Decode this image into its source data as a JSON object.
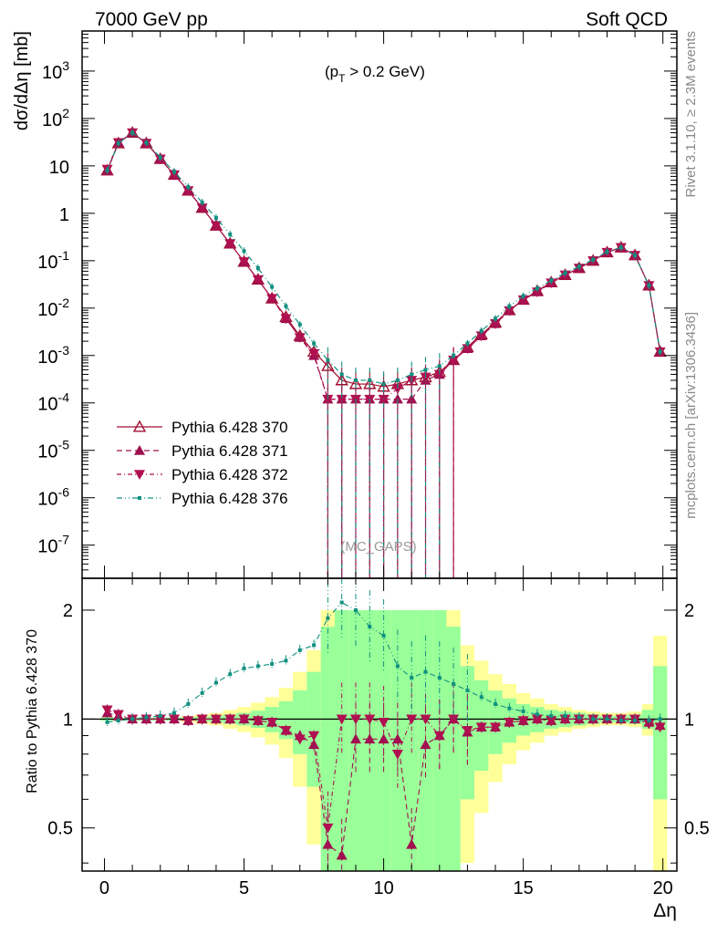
{
  "header": {
    "left": "7000 GeV pp",
    "right": "Soft QCD"
  },
  "side": {
    "rivet": "Rivet 3.1.10, ≥ 2.3M events",
    "mcplots": "mcplots.cern.ch [arXiv:1306.3436]"
  },
  "colors": {
    "c370": "#a01030",
    "c371": "#a01050",
    "c372": "#b01050",
    "c376": "#109080",
    "band_yellow": "#ffff99",
    "band_green": "#99ff99"
  },
  "chart_data": [
    {
      "type": "scatter",
      "panel": "main",
      "annotation": "(p_T > 0.2 GeV)",
      "watermark": "(MC_GAPS)",
      "xlabel": "Δη",
      "ylabel": "dσ/dΔη [mb]",
      "xlim": [
        -0.8,
        20.5
      ],
      "ylim": [
        2e-08,
        7000
      ],
      "yscale": "log",
      "ytick_labels": [
        "10^-7",
        "10^-6",
        "10^-5",
        "10^-4",
        "10^-3",
        "10^-2",
        "10^-1",
        "1",
        "10",
        "10^2",
        "10^3"
      ],
      "legend": [
        "Pythia 6.428 370",
        "Pythia 6.428 371",
        "Pythia 6.428 372",
        "Pythia 6.428 376"
      ],
      "legend_position": "lower-left",
      "series": [
        {
          "name": "Pythia 6.428 370",
          "marker": "open-triangle-up",
          "line": "solid",
          "x": [
            0.1,
            0.5,
            1.0,
            1.5,
            2.0,
            2.5,
            3.0,
            3.5,
            4.0,
            4.5,
            5.0,
            5.5,
            6.0,
            6.5,
            7.0,
            7.5,
            8.0,
            8.5,
            9.0,
            9.5,
            10.0,
            10.5,
            11.0,
            11.5,
            12.0,
            12.5,
            13.0,
            13.5,
            14.0,
            14.5,
            15.0,
            15.5,
            16.0,
            16.5,
            17.0,
            17.5,
            18.0,
            18.5,
            19.0,
            19.5,
            19.9
          ],
          "y": [
            8,
            30,
            50,
            30,
            14,
            6.5,
            3,
            1.3,
            0.55,
            0.23,
            0.095,
            0.04,
            0.016,
            0.0065,
            0.0026,
            0.0012,
            0.0006,
            0.0003,
            0.00025,
            0.00025,
            0.00022,
            0.00025,
            0.0003,
            0.00035,
            0.00045,
            0.0008,
            0.0015,
            0.0028,
            0.005,
            0.009,
            0.015,
            0.023,
            0.035,
            0.05,
            0.07,
            0.1,
            0.15,
            0.19,
            0.13,
            0.03,
            0.0012
          ]
        },
        {
          "name": "Pythia 6.428 371",
          "marker": "filled-triangle-up",
          "line": "dashed",
          "x": [
            0.1,
            0.5,
            1.0,
            1.5,
            2.0,
            2.5,
            3.0,
            3.5,
            4.0,
            4.5,
            5.0,
            5.5,
            6.0,
            6.5,
            7.0,
            7.5,
            8.0,
            8.5,
            9.0,
            9.5,
            10.0,
            10.5,
            11.0,
            11.5,
            12.0,
            12.5,
            13.0,
            13.5,
            14.0,
            14.5,
            15.0,
            15.5,
            16.0,
            16.5,
            17.0,
            17.5,
            18.0,
            18.5,
            19.0,
            19.5,
            19.9
          ],
          "y": [
            8,
            31,
            50,
            30,
            14,
            6.5,
            3,
            1.3,
            0.55,
            0.23,
            0.095,
            0.04,
            0.016,
            0.006,
            0.0024,
            0.001,
            0.00012,
            0.00012,
            0.00012,
            0.00012,
            0.00012,
            0.00012,
            0.00012,
            0.0003,
            0.0004,
            0.0008,
            0.0014,
            0.0026,
            0.0047,
            0.0088,
            0.015,
            0.022,
            0.034,
            0.05,
            0.07,
            0.1,
            0.15,
            0.19,
            0.13,
            0.03,
            0.0012
          ]
        },
        {
          "name": "Pythia 6.428 372",
          "marker": "filled-triangle-down",
          "line": "dash-dot",
          "x": [
            0.1,
            0.5,
            1.0,
            1.5,
            2.0,
            2.5,
            3.0,
            3.5,
            4.0,
            4.5,
            5.0,
            5.5,
            6.0,
            6.5,
            7.0,
            7.5,
            8.0,
            8.5,
            9.0,
            9.5,
            10.0,
            10.5,
            11.0,
            11.5,
            12.0,
            12.5,
            13.0,
            13.5,
            14.0,
            14.5,
            15.0,
            15.5,
            16.0,
            16.5,
            17.0,
            17.5,
            18.0,
            18.5,
            19.0,
            19.5,
            19.9
          ],
          "y": [
            8.5,
            31,
            50,
            30,
            14,
            6.5,
            3,
            1.3,
            0.55,
            0.23,
            0.095,
            0.04,
            0.016,
            0.006,
            0.0024,
            0.0011,
            0.00012,
            0.00012,
            0.00012,
            0.00012,
            0.00012,
            0.0002,
            0.0003,
            0.00035,
            0.0004,
            0.0008,
            0.0014,
            0.0026,
            0.0047,
            0.0088,
            0.015,
            0.022,
            0.034,
            0.05,
            0.07,
            0.1,
            0.15,
            0.19,
            0.13,
            0.03,
            0.0012
          ]
        },
        {
          "name": "Pythia 6.428 376",
          "marker": "small-square",
          "line": "dash-dot-dot",
          "x": [
            0.1,
            0.5,
            1.0,
            1.5,
            2.0,
            2.5,
            3.0,
            3.5,
            4.0,
            4.5,
            5.0,
            5.5,
            6.0,
            6.5,
            7.0,
            7.5,
            8.0,
            8.5,
            9.0,
            9.5,
            10.0,
            10.5,
            11.0,
            11.5,
            12.0,
            12.5,
            13.0,
            13.5,
            14.0,
            14.5,
            15.0,
            15.5,
            16.0,
            16.5,
            17.0,
            17.5,
            18.0,
            18.5,
            19.0,
            19.5,
            19.9
          ],
          "y": [
            8,
            30,
            50,
            31,
            15,
            7.5,
            3.6,
            1.7,
            0.8,
            0.36,
            0.16,
            0.07,
            0.028,
            0.011,
            0.0045,
            0.0018,
            0.0008,
            0.0004,
            0.0003,
            0.0003,
            0.00025,
            0.0003,
            0.0004,
            0.0005,
            0.0006,
            0.001,
            0.0018,
            0.0033,
            0.006,
            0.011,
            0.018,
            0.026,
            0.038,
            0.055,
            0.075,
            0.105,
            0.155,
            0.19,
            0.13,
            0.03,
            0.0012
          ]
        }
      ]
    },
    {
      "type": "scatter",
      "panel": "ratio",
      "ylabel": "Ratio to Pythia 6.428 370",
      "xlabel": "Δη",
      "xlim": [
        -0.8,
        20.5
      ],
      "ylim": [
        0.38,
        2.45
      ],
      "yscale": "log",
      "ytick_labels": [
        "0.5",
        "1",
        "2"
      ],
      "xtick_labels": [
        "0",
        "5",
        "10",
        "15",
        "20"
      ],
      "reference": 1,
      "band": {
        "x": [
          0.1,
          0.5,
          1.0,
          1.5,
          2.0,
          2.5,
          3.0,
          3.5,
          4.0,
          4.5,
          5.0,
          5.5,
          6.0,
          6.5,
          7.0,
          7.5,
          8.0,
          8.5,
          9.0,
          9.5,
          10.0,
          10.5,
          11.0,
          11.5,
          12.0,
          12.5,
          13.0,
          13.5,
          14.0,
          14.5,
          15.0,
          15.5,
          16.0,
          16.5,
          17.0,
          17.5,
          18.0,
          18.5,
          19.0,
          19.5,
          19.9
        ],
        "yellow": [
          0.01,
          0.01,
          0.01,
          0.01,
          0.01,
          0.01,
          0.02,
          0.03,
          0.04,
          0.06,
          0.08,
          0.11,
          0.15,
          0.22,
          0.35,
          0.55,
          1,
          1,
          1,
          1,
          1,
          1,
          1,
          1,
          1,
          1,
          0.6,
          0.45,
          0.33,
          0.25,
          0.18,
          0.14,
          0.1,
          0.08,
          0.06,
          0.05,
          0.04,
          0.04,
          0.05,
          0.1,
          0.7
        ],
        "green": [
          0.01,
          0.01,
          0.01,
          0.01,
          0.01,
          0.01,
          0.01,
          0.015,
          0.02,
          0.03,
          0.04,
          0.055,
          0.08,
          0.12,
          0.2,
          0.35,
          0.8,
          1,
          1,
          1,
          1,
          1,
          1,
          1,
          1,
          0.8,
          0.4,
          0.28,
          0.2,
          0.14,
          0.1,
          0.08,
          0.06,
          0.05,
          0.04,
          0.03,
          0.02,
          0.02,
          0.03,
          0.06,
          0.4
        ]
      },
      "series": [
        {
          "name": "Pythia 6.428 371",
          "x": [
            0.1,
            0.5,
            1.0,
            1.5,
            2.0,
            2.5,
            3.0,
            3.5,
            4.0,
            4.5,
            5.0,
            5.5,
            6.0,
            6.5,
            7.0,
            7.5,
            8.0,
            8.5,
            9.0,
            9.5,
            10.0,
            10.5,
            11.0,
            11.5,
            12.0,
            12.5,
            13.0,
            13.5,
            14.0,
            14.5,
            15.0,
            15.5,
            16.0,
            16.5,
            17.0,
            17.5,
            18.0,
            18.5,
            19.0,
            19.5,
            19.9
          ],
          "y": [
            1.04,
            1.02,
            1.0,
            1.0,
            1.0,
            1.0,
            0.99,
            1.0,
            1.0,
            1.0,
            1.0,
            0.99,
            0.98,
            0.93,
            0.9,
            0.85,
            0.45,
            0.42,
            0.88,
            0.88,
            0.88,
            0.88,
            0.45,
            0.85,
            0.9,
            1.0,
            0.92,
            0.95,
            0.95,
            0.98,
            0.99,
            1.0,
            0.99,
            1.0,
            1.0,
            1.0,
            1.0,
            1.0,
            1.0,
            0.98,
            0.96
          ]
        },
        {
          "name": "Pythia 6.428 372",
          "x": [
            0.1,
            0.5,
            1.0,
            1.5,
            2.0,
            2.5,
            3.0,
            3.5,
            4.0,
            4.5,
            5.0,
            5.5,
            6.0,
            6.5,
            7.0,
            7.5,
            8.0,
            8.5,
            9.0,
            9.5,
            10.0,
            10.5,
            11.0,
            11.5,
            12.0,
            12.5,
            13.0,
            13.5,
            14.0,
            14.5,
            15.0,
            15.5,
            16.0,
            16.5,
            17.0,
            17.5,
            18.0,
            18.5,
            19.0,
            19.5,
            19.9
          ],
          "y": [
            1.06,
            1.03,
            1.0,
            1.0,
            1.0,
            1.0,
            0.99,
            1.0,
            1.0,
            1.0,
            1.0,
            0.99,
            0.98,
            0.93,
            0.88,
            0.9,
            0.5,
            1.0,
            1.0,
            1.0,
            0.98,
            0.8,
            1.0,
            1.0,
            0.9,
            1.0,
            0.93,
            0.95,
            0.95,
            0.98,
            0.99,
            1.0,
            0.99,
            1.0,
            1.0,
            1.0,
            1.0,
            1.0,
            1.0,
            0.97,
            0.95
          ]
        },
        {
          "name": "Pythia 6.428 376",
          "x": [
            0.1,
            0.5,
            1.0,
            1.5,
            2.0,
            2.5,
            3.0,
            3.5,
            4.0,
            4.5,
            5.0,
            5.5,
            6.0,
            6.5,
            7.0,
            7.5,
            8.0,
            8.5,
            9.0,
            9.5,
            10.0,
            10.5,
            11.0,
            11.5,
            12.0,
            12.5,
            13.0,
            13.5,
            14.0,
            14.5,
            15.0,
            15.5,
            16.0,
            16.5,
            17.0,
            17.5,
            18.0,
            18.5,
            19.0,
            19.5,
            19.9
          ],
          "y": [
            0.98,
            0.99,
            1.0,
            1.01,
            1.02,
            1.04,
            1.1,
            1.18,
            1.26,
            1.33,
            1.38,
            1.4,
            1.42,
            1.45,
            1.55,
            1.6,
            1.9,
            2.1,
            2.0,
            1.8,
            1.7,
            1.4,
            1.3,
            1.35,
            1.3,
            1.25,
            1.2,
            1.15,
            1.1,
            1.07,
            1.05,
            1.03,
            1.02,
            1.02,
            1.01,
            1.0,
            1.0,
            0.99,
            0.99,
            0.99,
            1.0
          ]
        }
      ]
    }
  ]
}
